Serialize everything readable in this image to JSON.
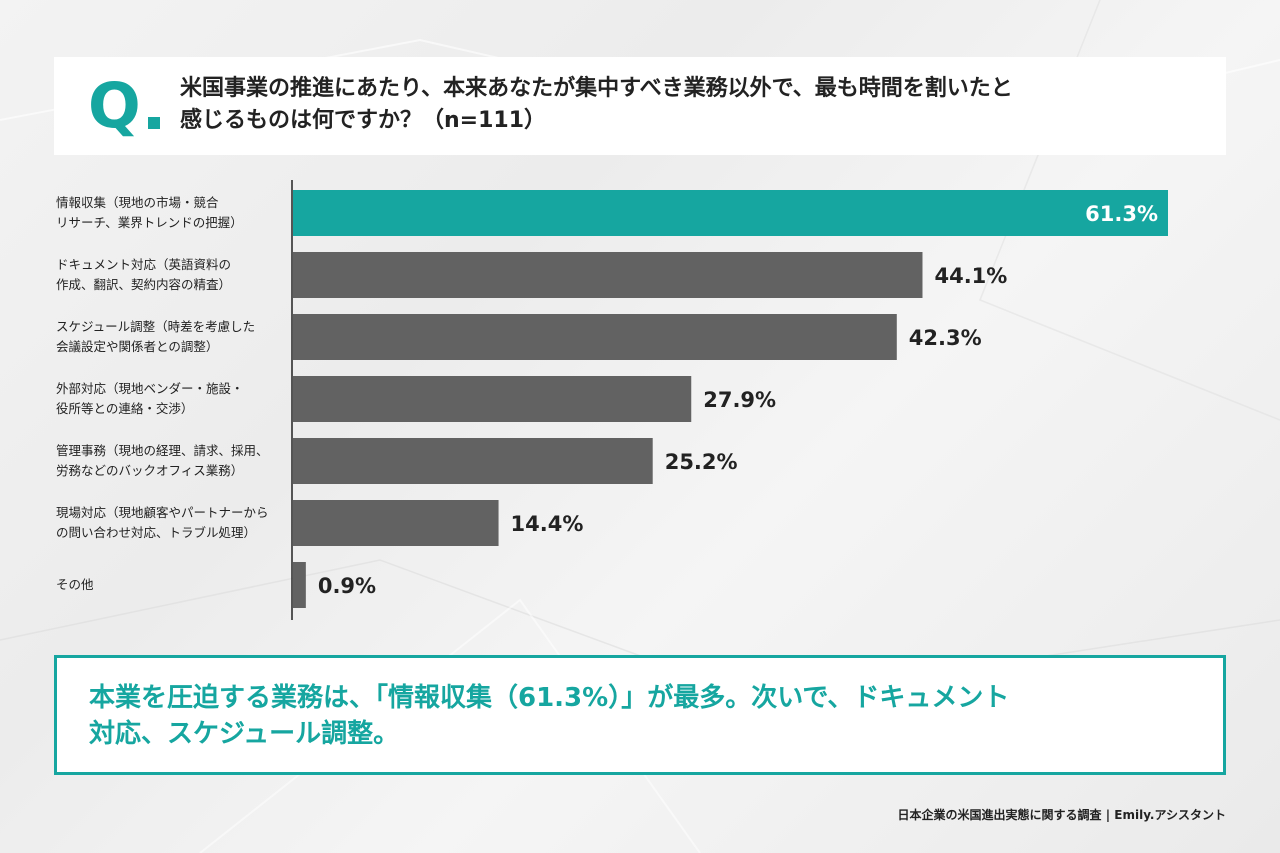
{
  "question": {
    "mark": "Q",
    "text_line1": "米国事業の推進にあたり、本来あなたが集中すべき業務以外で、最も時間を割いたと",
    "text_line2": "感じるものは何ですか？（n=111）"
  },
  "chart_data": {
    "type": "bar",
    "orientation": "horizontal",
    "categories": [
      [
        "情報収集（現地の市場・競合",
        "リサーチ、業界トレンドの把握）"
      ],
      [
        "ドキュメント対応（英語資料の",
        "作成、翻訳、契約内容の精査）"
      ],
      [
        "スケジュール調整（時差を考慮した",
        "会議設定や関係者との調整）"
      ],
      [
        "外部対応（現地ベンダー・施設・",
        "役所等との連絡・交渉）"
      ],
      [
        "管理事務（現地の経理、請求、採用、",
        "労務などのバックオフィス業務）"
      ],
      [
        "現場対応（現地顧客やパートナーから",
        "の問い合わせ対応、トラブル処理）"
      ],
      [
        "その他"
      ]
    ],
    "values": [
      61.3,
      44.1,
      42.3,
      27.9,
      25.2,
      14.4,
      0.9
    ],
    "value_labels": [
      "61.3%",
      "44.1%",
      "42.3%",
      "27.9%",
      "25.2%",
      "14.4%",
      "0.9%"
    ],
    "xlim": [
      0,
      61.3
    ],
    "highlight_index": 0,
    "colors": {
      "highlight": "#16a6a0",
      "default": "#626262",
      "label": "#222222",
      "highlight_label": "#ffffff"
    }
  },
  "summary": {
    "line1": "本業を圧迫する業務は、「情報収集（61.3%）」が最多。次いで、ドキュメント",
    "line2": "対応、スケジュール調整。"
  },
  "source": "日本企業の米国進出実態に関する調査 | Emily.アシスタント"
}
